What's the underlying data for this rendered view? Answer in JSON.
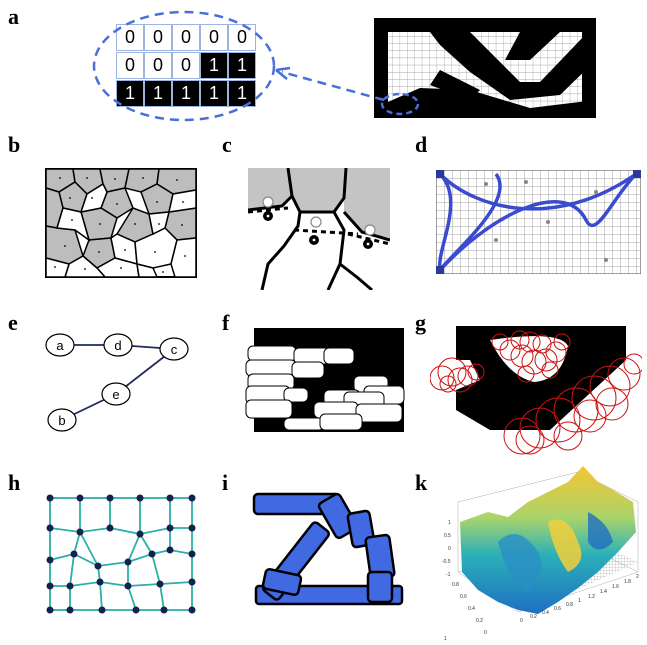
{
  "labels": [
    "a",
    "b",
    "c",
    "d",
    "e",
    "f",
    "g",
    "h",
    "i",
    "k"
  ],
  "panel_a": {
    "grid": [
      [
        "0",
        "0",
        "0",
        "0",
        "0"
      ],
      [
        "0",
        "0",
        "0",
        "1",
        "1"
      ],
      [
        "1",
        "1",
        "1",
        "1",
        "1"
      ]
    ]
  },
  "panel_e": {
    "nodes": [
      "a",
      "d",
      "c",
      "e",
      "b"
    ]
  },
  "panel_k": {
    "y_ticks": [
      "1",
      "0.5",
      "0",
      "-0.5",
      "-1"
    ],
    "x_ticks": [
      "0",
      "0.2",
      "0.4",
      "0.6",
      "0.8",
      "1",
      "1.2",
      "1.4",
      "1.6",
      "1.8",
      "2"
    ],
    "z_ticks": [
      "0",
      "0.2",
      "0.4",
      "0.6",
      "0.8",
      "1"
    ]
  },
  "colors": {
    "accent_blue": "#4169e1",
    "dashed_blue": "#4a6fd8",
    "teal": "#2ab0a6",
    "navy": "#12214d",
    "red": "#cc1111",
    "gray": "#bdbdbd"
  }
}
